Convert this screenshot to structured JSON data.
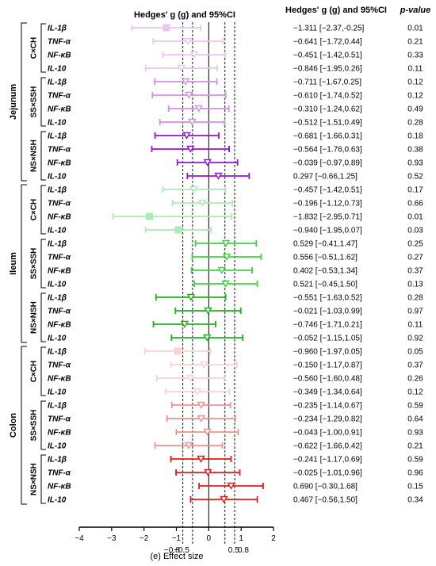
{
  "chart_data": {
    "type": "forest",
    "header_plot": "Hedges' g (g) and 95%CI",
    "header_stats": "Hedges' g (g) and 95%CI",
    "header_p": "p-value",
    "xlabel": "(e) Effect size",
    "xlim": [
      -4,
      2
    ],
    "xticks": [
      "-4",
      "-3",
      "-2",
      "-1",
      "0",
      "1",
      "2"
    ],
    "ref_lines": [
      -0.8,
      -0.5,
      0.5,
      0.8
    ],
    "ref_labels": [
      "-0.8",
      "-0.5",
      "0.5",
      "0.8"
    ],
    "sections": [
      {
        "name": "Jejunum",
        "groups": [
          {
            "name": "C×CH",
            "color": "#e8c6f0",
            "rows": [
              {
                "label": "IL-1β",
                "g": -1.311,
                "lo": -2.37,
                "hi": -0.25,
                "text": "−1.311 [−2.37,-0.25]",
                "p": "0.01"
              },
              {
                "label": "TNF-α",
                "g": -0.641,
                "lo": -1.72,
                "hi": 0.44,
                "text": "−0.641 [−1.72,0.44]",
                "p": "0.21"
              },
              {
                "label": "NF-κB",
                "g": -0.451,
                "lo": -1.42,
                "hi": 0.51,
                "text": "−0.451 [−1.42,0.51]",
                "p": "0.33"
              },
              {
                "label": "IL-10",
                "g": -0.846,
                "lo": -1.95,
                "hi": 0.26,
                "text": "−0.846 [−1.95,0.26]",
                "p": "0.11"
              }
            ]
          },
          {
            "name": "SS×SSH",
            "color": "#d490e6",
            "rows": [
              {
                "label": "IL-1β",
                "g": -0.711,
                "lo": -1.67,
                "hi": 0.25,
                "text": "−0.711 [−1.67,0.25]",
                "p": "0.12"
              },
              {
                "label": "TNF-α",
                "g": -0.61,
                "lo": -1.74,
                "hi": 0.52,
                "text": "−0.610 [−1.74,0.52]",
                "p": "0.12"
              },
              {
                "label": "NF-κB",
                "g": -0.31,
                "lo": -1.24,
                "hi": 0.62,
                "text": "−0.310 [−1.24,0.62]",
                "p": "0.49"
              },
              {
                "label": "IL-10",
                "g": -0.512,
                "lo": -1.51,
                "hi": 0.49,
                "text": "−0.512 [−1.51,0.49]",
                "p": "0.28"
              }
            ]
          },
          {
            "name": "NS×NSH",
            "color": "#9a10d8",
            "rows": [
              {
                "label": "IL-1β",
                "g": -0.681,
                "lo": -1.66,
                "hi": 0.31,
                "text": "−0.681 [−1.66,0.31]",
                "p": "0.18"
              },
              {
                "label": "TNF-α",
                "g": -0.564,
                "lo": -1.76,
                "hi": 0.63,
                "text": "−0.564 [−1.76,0.63]",
                "p": "0.38"
              },
              {
                "label": "NF-κB",
                "g": -0.039,
                "lo": -0.97,
                "hi": 0.89,
                "text": "−0.039 [−0.97,0.89]",
                "p": "0.93"
              },
              {
                "label": "IL-10",
                "g": 0.297,
                "lo": -0.66,
                "hi": 1.25,
                "text": "0.297 [−0.66,1.25]",
                "p": "0.52"
              }
            ]
          }
        ]
      },
      {
        "name": "Ileum",
        "groups": [
          {
            "name": "C×CH",
            "color": "#a8ecb2",
            "rows": [
              {
                "label": "IL-1β",
                "g": -0.457,
                "lo": -1.42,
                "hi": 0.51,
                "text": "−0.457 [−1.42,0.51]",
                "p": "0.17"
              },
              {
                "label": "TNF-α",
                "g": -0.196,
                "lo": -1.12,
                "hi": 0.73,
                "text": "−0.196 [−1.12,0.73]",
                "p": "0.66"
              },
              {
                "label": "NF-κB",
                "g": -1.832,
                "lo": -2.95,
                "hi": 0.71,
                "text": "−1.832 [−2.95,0.71]",
                "p": "0.01"
              },
              {
                "label": "IL-10",
                "g": -0.94,
                "lo": -1.95,
                "hi": 0.07,
                "text": "−0.940 [−1.95,0.07]",
                "p": "0.03"
              }
            ]
          },
          {
            "name": "SS×SSH",
            "color": "#3bd43b",
            "rows": [
              {
                "label": "IL-1β",
                "g": 0.529,
                "lo": -0.41,
                "hi": 1.47,
                "text": "0.529 [−0.41,1.47]",
                "p": "0.25"
              },
              {
                "label": "TNF-α",
                "g": 0.556,
                "lo": -0.51,
                "hi": 1.62,
                "text": "0.556 [−0.51,1.62]",
                "p": "0.27"
              },
              {
                "label": "NF-κB",
                "g": 0.402,
                "lo": -0.53,
                "hi": 1.34,
                "text": "0.402 [−0.53,1.34]",
                "p": "0.37"
              },
              {
                "label": "IL-10",
                "g": 0.521,
                "lo": -0.45,
                "hi": 1.5,
                "text": "0.521 [−0.45,1.50]",
                "p": "0.13"
              }
            ]
          },
          {
            "name": "NS×NSH",
            "color": "#18b418",
            "rows": [
              {
                "label": "IL-1β",
                "g": -0.551,
                "lo": -1.63,
                "hi": 0.52,
                "text": "−0.551 [−1.63,0.52]",
                "p": "0.28"
              },
              {
                "label": "TNF-α",
                "g": -0.021,
                "lo": -1.03,
                "hi": 0.99,
                "text": "−0.021 [−1.03,0.99]",
                "p": "0.97"
              },
              {
                "label": "NF-κB",
                "g": -0.746,
                "lo": -1.71,
                "hi": 0.21,
                "text": "−0.746 [−1.71,0.21]",
                "p": "0.11"
              },
              {
                "label": "IL-10",
                "g": -0.052,
                "lo": -1.15,
                "hi": 1.05,
                "text": "−0.052 [−1.15,1.05]",
                "p": "0.92"
              }
            ]
          }
        ]
      },
      {
        "name": "Colon",
        "groups": [
          {
            "name": "C×CH",
            "color": "#f8d2d2",
            "rows": [
              {
                "label": "IL-1β",
                "g": -0.96,
                "lo": -1.97,
                "hi": 0.05,
                "text": "−0.960 [−1.97,0.05]",
                "p": "0.05"
              },
              {
                "label": "TNF-α",
                "g": -0.15,
                "lo": -1.17,
                "hi": 0.87,
                "text": "−0.150 [−1.17,0.87]",
                "p": "0.37"
              },
              {
                "label": "NF-κB",
                "g": -0.56,
                "lo": -1.6,
                "hi": 0.48,
                "text": "−0.560 [−1.60,0.48]",
                "p": "0.26"
              },
              {
                "label": "IL-10",
                "g": -0.349,
                "lo": -1.34,
                "hi": 0.64,
                "text": "−0.349 [−1.34,0.64]",
                "p": "0.12"
              }
            ]
          },
          {
            "name": "SS×SSH",
            "color": "#f09090",
            "rows": [
              {
                "label": "IL-1β",
                "g": -0.235,
                "lo": -1.14,
                "hi": 0.67,
                "text": "−0.235 [−1.14,0.67]",
                "p": "0.59"
              },
              {
                "label": "TNF-α",
                "g": -0.234,
                "lo": -1.29,
                "hi": 0.82,
                "text": "−0.234 [−1.29,0.82]",
                "p": "0.64"
              },
              {
                "label": "NF-κB",
                "g": -0.043,
                "lo": -1.0,
                "hi": 0.91,
                "text": "−0.043 [−1.00,0.91]",
                "p": "0.93"
              },
              {
                "label": "IL-10",
                "g": -0.622,
                "lo": -1.66,
                "hi": 0.42,
                "text": "−0.622 [−1.66,0.42]",
                "p": "0.21"
              }
            ]
          },
          {
            "name": "NS×NSH",
            "color": "#e81818",
            "rows": [
              {
                "label": "IL-1β",
                "g": -0.241,
                "lo": -1.17,
                "hi": 0.69,
                "text": "−0.241 [−1.17,0.69]",
                "p": "0.59"
              },
              {
                "label": "TNF-α",
                "g": -0.025,
                "lo": -1.01,
                "hi": 0.96,
                "text": "−0.025 [−1.01,0.96]",
                "p": "0.96"
              },
              {
                "label": "NF-κB",
                "g": 0.69,
                "lo": -0.3,
                "hi": 1.68,
                "text": "0.690 [−0.30,1.68]",
                "p": "0.15"
              },
              {
                "label": "IL-10",
                "g": 0.467,
                "lo": -0.56,
                "hi": 1.5,
                "text": "0.467 [−0.56,1.50]",
                "p": "0.34"
              }
            ]
          }
        ]
      }
    ]
  }
}
